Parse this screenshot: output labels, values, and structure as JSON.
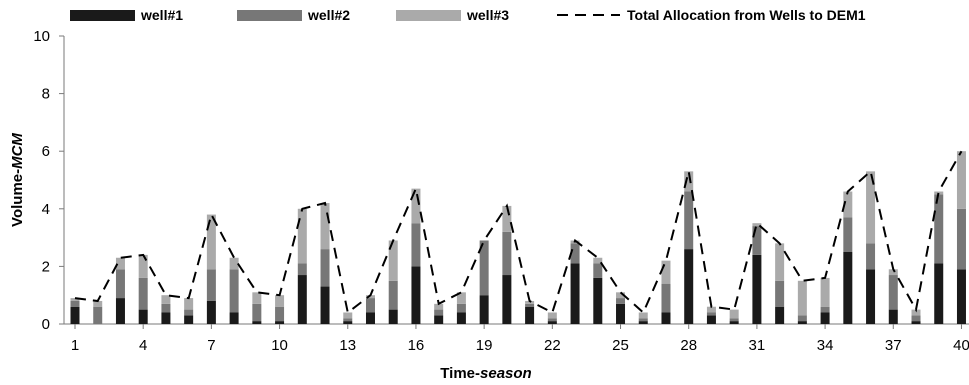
{
  "chart_data": {
    "type": "bar",
    "stacked": true,
    "xlabel": "Time-",
    "xlabel_italic": "season",
    "ylabel": "Volume-",
    "ylabel_italic": "MCM",
    "ylim": [
      0,
      10
    ],
    "yticks": [
      "0",
      "2",
      "4",
      "6",
      "8",
      "10"
    ],
    "xticks": [
      "1",
      "4",
      "7",
      "10",
      "13",
      "16",
      "19",
      "22",
      "25",
      "28",
      "31",
      "34",
      "37",
      "40"
    ],
    "categories": [
      "1",
      "2",
      "3",
      "4",
      "5",
      "6",
      "7",
      "8",
      "9",
      "10",
      "11",
      "12",
      "13",
      "14",
      "15",
      "16",
      "17",
      "18",
      "19",
      "20",
      "21",
      "22",
      "23",
      "24",
      "25",
      "26",
      "27",
      "28",
      "29",
      "30",
      "31",
      "32",
      "33",
      "34",
      "35",
      "36",
      "37",
      "38",
      "39",
      "40"
    ],
    "grid": false,
    "legend_position": "top",
    "series": [
      {
        "name": "well#1",
        "color": "#1a1a1a",
        "values": [
          0.6,
          0.0,
          0.9,
          0.5,
          0.4,
          0.3,
          0.8,
          0.4,
          0.1,
          0.1,
          1.7,
          1.3,
          0.1,
          0.4,
          0.5,
          2.0,
          0.3,
          0.4,
          1.0,
          1.7,
          0.6,
          0.1,
          2.1,
          1.6,
          0.7,
          0.1,
          0.4,
          2.6,
          0.3,
          0.1,
          2.4,
          0.6,
          0.1,
          0.4,
          2.5,
          1.9,
          0.5,
          0.1,
          2.1,
          1.9
        ]
      },
      {
        "name": "well#2",
        "color": "#777777",
        "values": [
          0.2,
          0.6,
          1.0,
          1.1,
          0.3,
          0.2,
          1.1,
          1.5,
          0.6,
          0.5,
          0.4,
          1.3,
          0.1,
          0.5,
          1.0,
          1.5,
          0.2,
          0.3,
          1.9,
          1.5,
          0.1,
          0.1,
          0.7,
          0.5,
          0.2,
          0.1,
          1.0,
          2.0,
          0.1,
          0.1,
          1.0,
          0.9,
          0.2,
          0.2,
          1.2,
          0.9,
          1.2,
          0.2,
          2.4,
          2.1
        ]
      },
      {
        "name": "well#3",
        "color": "#aaaaaa",
        "values": [
          0.1,
          0.2,
          0.4,
          0.8,
          0.3,
          0.4,
          1.9,
          0.4,
          0.4,
          0.4,
          1.9,
          1.6,
          0.2,
          0.1,
          1.4,
          1.2,
          0.2,
          0.4,
          0.0,
          0.9,
          0.1,
          0.2,
          0.1,
          0.2,
          0.2,
          0.2,
          0.8,
          0.7,
          0.2,
          0.3,
          0.1,
          1.3,
          1.2,
          1.0,
          0.9,
          2.5,
          0.2,
          0.2,
          0.1,
          2.0
        ]
      },
      {
        "name": "Total Allocation from Wells to DEM1",
        "type": "line",
        "style": "dashed",
        "color": "#000000",
        "values": [
          0.9,
          0.8,
          2.3,
          2.4,
          1.0,
          0.9,
          3.8,
          2.3,
          1.1,
          1.0,
          4.0,
          4.2,
          0.4,
          1.0,
          2.9,
          4.7,
          0.7,
          1.1,
          2.9,
          4.1,
          0.8,
          0.4,
          2.9,
          2.3,
          1.1,
          0.4,
          2.2,
          5.3,
          0.6,
          0.5,
          3.5,
          2.8,
          1.5,
          1.6,
          4.6,
          5.3,
          1.9,
          0.5,
          4.6,
          6.0
        ]
      }
    ]
  }
}
